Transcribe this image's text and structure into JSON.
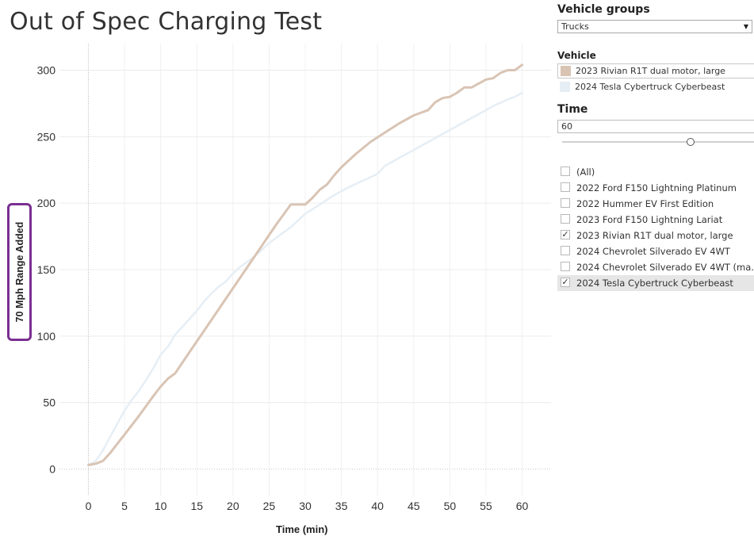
{
  "page": {
    "title": "Out of Spec Charging Test"
  },
  "filters": {
    "vehicle_groups": {
      "heading": "Vehicle groups",
      "selected": "Trucks",
      "arrow_icon": "dropdown-arrow-icon"
    },
    "vehicle_legend": {
      "heading": "Vehicle",
      "items": [
        {
          "label": "2023 Rivian R1T dual motor, large",
          "color": "#d9c4b4"
        },
        {
          "label": "2024 Tesla Cybertruck Cyberbeast",
          "color": "#e6eef5"
        }
      ]
    },
    "time": {
      "heading": "Time",
      "value": "60",
      "slider_fraction": 0.67
    },
    "vehicle_list": [
      {
        "label": "(All)",
        "checked": false,
        "mark": ""
      },
      {
        "label": "2022 Ford F150 Lightning Platinum",
        "checked": false,
        "mark": ""
      },
      {
        "label": "2022 Hummer EV First Edition",
        "checked": false,
        "mark": ""
      },
      {
        "label": "2023 Ford F150 Lightning Lariat",
        "checked": false,
        "mark": ""
      },
      {
        "label": "2023 Rivian R1T dual motor, large",
        "checked": true,
        "mark": "✓"
      },
      {
        "label": "2024 Chevrolet Silverado EV 4WT",
        "checked": false,
        "mark": ""
      },
      {
        "label": "2024 Chevrolet Silverado EV 4WT (ma...",
        "checked": false,
        "mark": ""
      },
      {
        "label": "2024 Tesla Cybertruck Cyberbeast",
        "checked": true,
        "mark": "✓"
      }
    ]
  },
  "chart_data": {
    "type": "line",
    "title": "Out of Spec Charging Test",
    "xlabel": "Time (min)",
    "ylabel": "70 Mph Range Added",
    "xlim": [
      -4,
      64
    ],
    "ylim": [
      -20,
      320
    ],
    "x_ticks": [
      "0",
      "5",
      "10",
      "15",
      "20",
      "25",
      "30",
      "35",
      "40",
      "45",
      "50",
      "55",
      "60"
    ],
    "x_tick_values": [
      0,
      5,
      10,
      15,
      20,
      25,
      30,
      35,
      40,
      45,
      50,
      55,
      60
    ],
    "y_ticks": [
      "0",
      "50",
      "100",
      "150",
      "200",
      "250",
      "300"
    ],
    "y_tick_values": [
      0,
      50,
      100,
      150,
      200,
      250,
      300
    ],
    "grid": true,
    "series": [
      {
        "name": "2024 Tesla Cybertruck Cyberbeast",
        "color": "#e6eef5",
        "x": [
          0,
          1,
          2,
          3,
          4,
          5,
          6,
          7,
          8,
          9,
          10,
          11,
          12,
          13,
          14,
          15,
          16,
          17,
          18,
          19,
          20,
          21,
          22,
          23,
          24,
          25,
          26,
          27,
          28,
          29,
          30,
          32,
          34,
          36,
          38,
          40,
          41,
          42,
          44,
          46,
          48,
          50,
          52,
          54,
          56,
          58,
          59,
          60
        ],
        "y": [
          3,
          6,
          14,
          24,
          34,
          44,
          52,
          59,
          67,
          76,
          86,
          92,
          101,
          107,
          113,
          119,
          126,
          132,
          137,
          141,
          147,
          152,
          156,
          160,
          165,
          170,
          174,
          178,
          182,
          187,
          192,
          199,
          206,
          212,
          217,
          222,
          228,
          231,
          237,
          243,
          249,
          255,
          261,
          267,
          273,
          278,
          280,
          283
        ]
      },
      {
        "name": "2023 Rivian R1T dual motor, large",
        "color": "#d9c4b4",
        "x": [
          0,
          1,
          2,
          3,
          5,
          7,
          9,
          10,
          11,
          12,
          14,
          16,
          18,
          20,
          22,
          24,
          26,
          28,
          30,
          31,
          32,
          33,
          34,
          35,
          37,
          39,
          41,
          43,
          45,
          47,
          48,
          49,
          50,
          51,
          52,
          53,
          54,
          55,
          56,
          57,
          58,
          59,
          60
        ],
        "y": [
          3,
          4,
          6,
          12,
          26,
          40,
          55,
          62,
          68,
          72,
          88,
          104,
          120,
          136,
          152,
          168,
          184,
          199,
          199,
          204,
          210,
          214,
          221,
          227,
          237,
          246,
          253,
          260,
          266,
          270,
          276,
          279,
          280,
          283,
          287,
          287,
          290,
          293,
          294,
          298,
          300,
          300,
          304
        ]
      }
    ]
  }
}
